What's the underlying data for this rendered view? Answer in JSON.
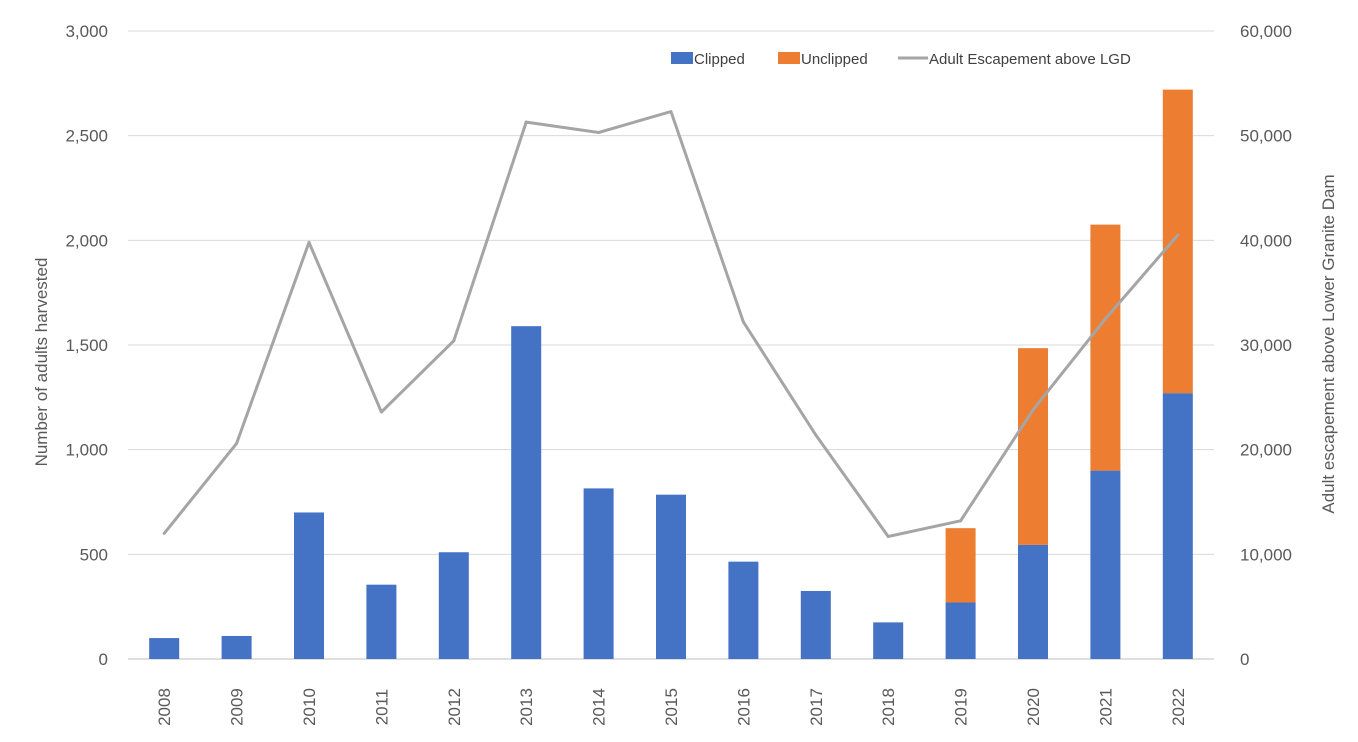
{
  "chart_data": {
    "type": "bar",
    "stacked": true,
    "categories": [
      "2008",
      "2009",
      "2010",
      "2011",
      "2012",
      "2013",
      "2014",
      "2015",
      "2016",
      "2017",
      "2018",
      "2019",
      "2020",
      "2021",
      "2022"
    ],
    "series": [
      {
        "name": "Clipped",
        "type": "bar",
        "axis": "left",
        "color": "#4472C4",
        "values": [
          100,
          110,
          700,
          355,
          510,
          1590,
          815,
          785,
          465,
          325,
          175,
          270,
          545,
          900,
          1270
        ]
      },
      {
        "name": "Unclipped",
        "type": "bar",
        "axis": "left",
        "color": "#ED7D31",
        "values": [
          0,
          0,
          0,
          0,
          0,
          0,
          0,
          0,
          0,
          0,
          0,
          355,
          940,
          1175,
          1450
        ]
      },
      {
        "name": "Adult Escapement above LGD",
        "type": "line",
        "axis": "right",
        "color": "#A5A5A5",
        "values": [
          12000,
          20600,
          39800,
          23600,
          30400,
          51300,
          50300,
          52300,
          32200,
          21400,
          11700,
          13200,
          23800,
          32500,
          40500
        ]
      }
    ],
    "ylabel": "Number of adults harvested",
    "ylabel_right": "Adult escapement above Lower Granite Dam",
    "ylim": [
      0,
      3000
    ],
    "ylim_right": [
      0,
      60000
    ],
    "yticks": [
      "0",
      "500",
      "1,000",
      "1,500",
      "2,000",
      "2,500",
      "3,000"
    ],
    "yticks_right": [
      "0",
      "10,000",
      "20,000",
      "30,000",
      "40,000",
      "50,000",
      "60,000"
    ],
    "grid": true,
    "legend_position": "top-right"
  }
}
